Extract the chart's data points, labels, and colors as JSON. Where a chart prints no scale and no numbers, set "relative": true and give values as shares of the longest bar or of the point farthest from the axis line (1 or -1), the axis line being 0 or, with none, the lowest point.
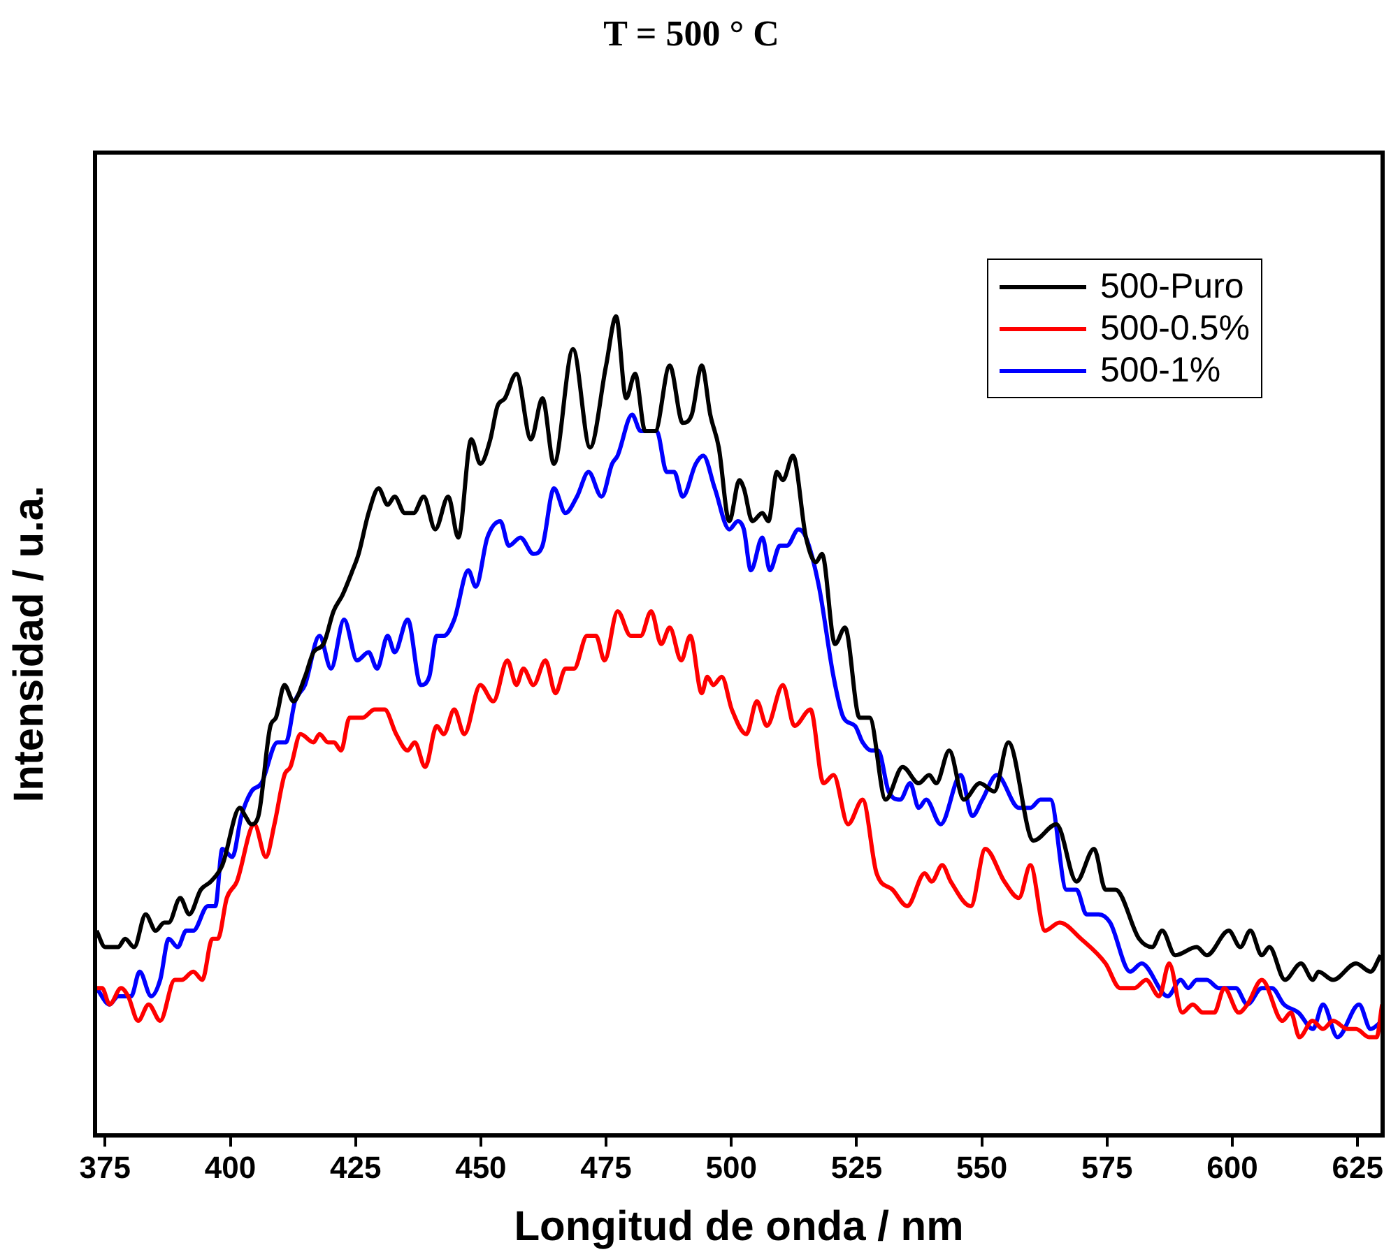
{
  "chart_data": {
    "type": "line",
    "title": "T = 500 ° C",
    "xlabel": "Longitud de onda / nm",
    "ylabel": "Intensidad / u.a.",
    "relative": true,
    "xlim": [
      373,
      630
    ],
    "xticks": [
      375,
      400,
      425,
      450,
      475,
      500,
      525,
      550,
      575,
      600,
      625
    ],
    "grid": false,
    "legend": "top right",
    "marker": "none",
    "line_style": "solid",
    "series": [
      {
        "name": "500-Puro",
        "color": "#000000",
        "x": [
          373.3,
          375.0,
          376.7,
          377.6,
          379.0,
          380.8,
          383.1,
          385.1,
          386.8,
          387.7,
          390.0,
          391.8,
          394.1,
          396.1,
          398.4,
          401.9,
          403.0,
          404.2,
          405.6,
          408.0,
          409.1,
          410.8,
          412.6,
          414.9,
          416.6,
          418.6,
          420.6,
          422.4,
          424.4,
          425.6,
          427.6,
          429.6,
          431.4,
          432.8,
          434.8,
          436.6,
          438.6,
          440.9,
          443.5,
          445.5,
          448.1,
          449.9,
          451.9,
          453.3,
          454.8,
          457.1,
          460.0,
          462.3,
          464.6,
          468.4,
          471.8,
          475.0,
          477.0,
          479.0,
          480.8,
          482.8,
          484.8,
          487.7,
          490.3,
          492.1,
          494.1,
          495.8,
          497.5,
          499.6,
          501.6,
          502.5,
          504.2,
          506.2,
          507.4,
          509.1,
          510.3,
          512.3,
          514.9,
          516.9,
          518.1,
          520.7,
          522.7,
          525.6,
          527.6,
          530.8,
          534.2,
          537.4,
          539.5,
          540.9,
          543.5,
          546.4,
          549.6,
          552.5,
          555.3,
          560.3,
          564.9,
          568.9,
          572.4,
          574.7,
          576.7,
          581.4,
          584.0,
          586.0,
          588.6,
          592.9,
          594.9,
          599.3,
          601.6,
          603.6,
          605.9,
          607.4,
          610.5,
          613.7,
          616.1,
          617.2,
          620.1,
          624.7,
          627.6,
          629.6
        ],
        "values": [
          0.25,
          0.23,
          0.23,
          0.23,
          0.24,
          0.23,
          0.27,
          0.25,
          0.26,
          0.26,
          0.29,
          0.27,
          0.3,
          0.31,
          0.33,
          0.4,
          0.39,
          0.38,
          0.39,
          0.5,
          0.51,
          0.55,
          0.53,
          0.56,
          0.59,
          0.6,
          0.64,
          0.66,
          0.69,
          0.71,
          0.76,
          0.79,
          0.77,
          0.78,
          0.76,
          0.76,
          0.78,
          0.74,
          0.78,
          0.73,
          0.85,
          0.82,
          0.85,
          0.89,
          0.9,
          0.93,
          0.85,
          0.9,
          0.82,
          0.96,
          0.84,
          0.94,
          1.0,
          0.9,
          0.93,
          0.86,
          0.86,
          0.94,
          0.87,
          0.88,
          0.94,
          0.88,
          0.84,
          0.75,
          0.8,
          0.79,
          0.75,
          0.76,
          0.75,
          0.81,
          0.8,
          0.83,
          0.73,
          0.7,
          0.71,
          0.6,
          0.62,
          0.51,
          0.51,
          0.41,
          0.45,
          0.43,
          0.44,
          0.43,
          0.47,
          0.41,
          0.43,
          0.42,
          0.48,
          0.36,
          0.38,
          0.31,
          0.35,
          0.3,
          0.3,
          0.24,
          0.23,
          0.25,
          0.22,
          0.23,
          0.22,
          0.25,
          0.23,
          0.25,
          0.22,
          0.23,
          0.19,
          0.21,
          0.19,
          0.2,
          0.19,
          0.21,
          0.2,
          0.22
        ]
      },
      {
        "name": "500-0.5%",
        "color": "#ff0000",
        "x": [
          373.3,
          374.4,
          375.9,
          378.2,
          379.6,
          381.6,
          383.7,
          386.0,
          388.9,
          390.3,
          392.6,
          394.4,
          396.4,
          397.5,
          399.3,
          401.3,
          404.8,
          407.1,
          408.8,
          410.8,
          412.0,
          414.0,
          416.6,
          417.8,
          419.5,
          420.7,
          422.1,
          423.8,
          426.4,
          428.8,
          430.8,
          433.1,
          435.4,
          436.8,
          438.9,
          441.2,
          442.6,
          444.7,
          446.7,
          449.9,
          452.5,
          455.3,
          457.1,
          458.5,
          460.5,
          462.9,
          464.9,
          466.9,
          468.6,
          471.2,
          473.0,
          474.7,
          477.3,
          479.9,
          481.9,
          484.0,
          486.0,
          487.7,
          490.0,
          491.8,
          494.1,
          495.2,
          496.4,
          498.1,
          500.1,
          503.0,
          505.1,
          507.1,
          510.3,
          512.6,
          515.8,
          518.4,
          520.4,
          523.3,
          526.2,
          529.0,
          532.2,
          535.1,
          538.6,
          540.0,
          542.1,
          543.8,
          547.8,
          550.7,
          554.5,
          557.4,
          559.7,
          562.6,
          565.5,
          569.8,
          574.7,
          577.6,
          580.5,
          582.8,
          585.4,
          587.4,
          590.0,
          592.1,
          594.1,
          596.4,
          598.4,
          601.3,
          603.0,
          605.9,
          610.0,
          611.7,
          613.4,
          616.0,
          618.1,
          620.1,
          623.0,
          624.7,
          627.3,
          628.8,
          629.9
        ],
        "values": [
          0.18,
          0.18,
          0.16,
          0.18,
          0.17,
          0.14,
          0.16,
          0.14,
          0.19,
          0.19,
          0.2,
          0.19,
          0.24,
          0.24,
          0.29,
          0.31,
          0.38,
          0.34,
          0.38,
          0.44,
          0.45,
          0.49,
          0.48,
          0.49,
          0.48,
          0.48,
          0.47,
          0.51,
          0.51,
          0.52,
          0.52,
          0.49,
          0.47,
          0.48,
          0.45,
          0.5,
          0.49,
          0.52,
          0.49,
          0.55,
          0.53,
          0.58,
          0.55,
          0.57,
          0.55,
          0.58,
          0.54,
          0.57,
          0.57,
          0.61,
          0.61,
          0.58,
          0.64,
          0.61,
          0.61,
          0.64,
          0.6,
          0.62,
          0.58,
          0.61,
          0.54,
          0.56,
          0.55,
          0.56,
          0.52,
          0.49,
          0.53,
          0.5,
          0.55,
          0.5,
          0.52,
          0.43,
          0.44,
          0.38,
          0.41,
          0.32,
          0.3,
          0.28,
          0.32,
          0.31,
          0.33,
          0.31,
          0.28,
          0.35,
          0.31,
          0.29,
          0.33,
          0.25,
          0.26,
          0.24,
          0.21,
          0.18,
          0.18,
          0.19,
          0.17,
          0.21,
          0.15,
          0.16,
          0.15,
          0.15,
          0.18,
          0.15,
          0.16,
          0.19,
          0.14,
          0.15,
          0.12,
          0.14,
          0.13,
          0.14,
          0.13,
          0.13,
          0.12,
          0.12,
          0.16
        ]
      },
      {
        "name": "500-1%",
        "color": "#0000ff",
        "x": [
          373.3,
          375.9,
          377.6,
          380.2,
          381.9,
          384.2,
          386.0,
          387.7,
          389.5,
          391.2,
          392.6,
          395.5,
          397.0,
          398.4,
          400.4,
          402.2,
          404.2,
          406.2,
          409.4,
          411.1,
          412.9,
          414.9,
          417.8,
          420.1,
          422.7,
          425.3,
          427.6,
          429.3,
          431.4,
          432.8,
          435.4,
          438.0,
          439.7,
          441.2,
          442.6,
          444.7,
          447.5,
          449.0,
          451.3,
          453.9,
          455.6,
          457.9,
          460.5,
          462.3,
          464.6,
          466.9,
          469.2,
          471.5,
          474.1,
          476.2,
          477.3,
          480.2,
          481.9,
          485.1,
          487.1,
          488.6,
          490.3,
          492.9,
          494.4,
          496.7,
          499.6,
          501.3,
          502.5,
          503.9,
          506.2,
          507.7,
          509.7,
          511.1,
          513.4,
          514.9,
          517.5,
          520.4,
          522.4,
          524.7,
          526.2,
          527.9,
          529.3,
          531.4,
          533.7,
          535.7,
          537.4,
          538.9,
          541.8,
          545.8,
          548.1,
          550.1,
          553.0,
          557.4,
          559.7,
          561.7,
          563.7,
          566.9,
          568.9,
          570.9,
          573.3,
          575.6,
          579.6,
          581.9,
          587.1,
          589.7,
          591.2,
          592.9,
          594.9,
          597.3,
          600.7,
          603.0,
          605.9,
          607.9,
          610.3,
          613.2,
          616.1,
          618.1,
          621.0,
          625.3,
          627.6,
          629.9
        ],
        "values": [
          0.18,
          0.16,
          0.17,
          0.17,
          0.2,
          0.17,
          0.19,
          0.24,
          0.23,
          0.25,
          0.25,
          0.28,
          0.28,
          0.35,
          0.34,
          0.39,
          0.42,
          0.43,
          0.48,
          0.48,
          0.53,
          0.55,
          0.61,
          0.57,
          0.63,
          0.58,
          0.59,
          0.57,
          0.61,
          0.59,
          0.63,
          0.55,
          0.56,
          0.61,
          0.61,
          0.63,
          0.69,
          0.67,
          0.73,
          0.75,
          0.72,
          0.73,
          0.71,
          0.72,
          0.79,
          0.76,
          0.78,
          0.81,
          0.78,
          0.82,
          0.83,
          0.88,
          0.86,
          0.86,
          0.81,
          0.81,
          0.78,
          0.82,
          0.83,
          0.79,
          0.74,
          0.75,
          0.74,
          0.69,
          0.73,
          0.69,
          0.72,
          0.72,
          0.74,
          0.73,
          0.67,
          0.56,
          0.51,
          0.5,
          0.48,
          0.47,
          0.47,
          0.42,
          0.41,
          0.43,
          0.4,
          0.41,
          0.38,
          0.44,
          0.39,
          0.41,
          0.44,
          0.4,
          0.4,
          0.41,
          0.41,
          0.3,
          0.3,
          0.27,
          0.27,
          0.26,
          0.2,
          0.21,
          0.17,
          0.19,
          0.18,
          0.19,
          0.19,
          0.18,
          0.18,
          0.16,
          0.18,
          0.18,
          0.16,
          0.15,
          0.13,
          0.16,
          0.12,
          0.16,
          0.13,
          0.14
        ]
      }
    ]
  }
}
